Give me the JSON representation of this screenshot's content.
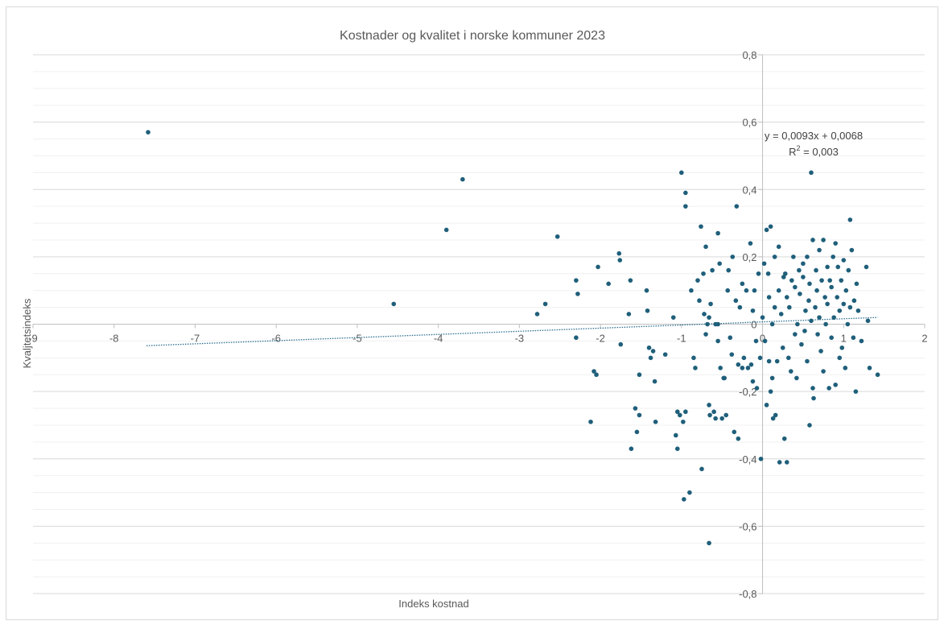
{
  "chart_data": {
    "type": "scatter",
    "title": "Kostnader og kvalitet i norske kommuner 2023",
    "xlabel": "Indeks kostnad",
    "ylabel": "Kvaljtetsindeks",
    "xlim": [
      -9,
      2
    ],
    "ylim": [
      -0.8,
      0.8
    ],
    "x_ticks": [
      -9,
      -8,
      -7,
      -6,
      -5,
      -4,
      -3,
      -2,
      -1,
      0,
      1,
      2
    ],
    "x_tick_labels": [
      "-9",
      "-8",
      "-7",
      "-6",
      "-5",
      "-4",
      "-3",
      "-2",
      "-1",
      "0",
      "1",
      "2"
    ],
    "y_ticks": [
      -0.8,
      -0.6,
      -0.4,
      -0.2,
      0,
      0.2,
      0.4,
      0.6,
      0.8
    ],
    "y_tick_labels": [
      "-0,8",
      "-0,6",
      "-0,4",
      "-0,2",
      "0",
      "0,2",
      "0,4",
      "0,6",
      "0,8"
    ],
    "minor_gridlines": true,
    "marker_color": "#1f5f7a",
    "trendline": {
      "type": "linear",
      "slope": 0.0093,
      "intercept": 0.0068,
      "x_range": [
        -7.6,
        1.42
      ],
      "color": "#2e6f8e",
      "equation": "y = 0,0093x + 0,0068",
      "r2_prefix": "R",
      "r2_suffix": " = 0,003"
    },
    "series": [
      {
        "points": [
          [
            -7.58,
            0.57
          ],
          [
            -4.55,
            0.06
          ],
          [
            -3.9,
            0.28
          ],
          [
            -3.7,
            0.43
          ],
          [
            -2.78,
            0.03
          ],
          [
            -2.68,
            0.06
          ],
          [
            -2.53,
            0.26
          ],
          [
            -2.3,
            0.13
          ],
          [
            -2.28,
            0.09
          ],
          [
            -2.3,
            -0.04
          ],
          [
            -2.12,
            -0.29
          ],
          [
            -2.08,
            -0.14
          ],
          [
            -2.05,
            -0.15
          ],
          [
            -2.03,
            0.17
          ],
          [
            -1.9,
            0.12
          ],
          [
            -1.77,
            0.21
          ],
          [
            -1.76,
            0.19
          ],
          [
            -1.75,
            -0.06
          ],
          [
            -1.63,
            0.13
          ],
          [
            -1.65,
            0.03
          ],
          [
            -1.62,
            -0.37
          ],
          [
            -1.57,
            -0.25
          ],
          [
            -1.55,
            -0.32
          ],
          [
            -1.52,
            -0.27
          ],
          [
            -1.52,
            -0.15
          ],
          [
            -1.43,
            0.1
          ],
          [
            -1.42,
            0.04
          ],
          [
            -1.4,
            -0.07
          ],
          [
            -1.38,
            -0.1
          ],
          [
            -1.35,
            -0.08
          ],
          [
            -1.33,
            -0.17
          ],
          [
            -1.32,
            -0.29
          ],
          [
            -1.2,
            -0.09
          ],
          [
            -1.1,
            0.02
          ],
          [
            -1.07,
            -0.33
          ],
          [
            -1.05,
            -0.37
          ],
          [
            -1.05,
            -0.26
          ],
          [
            -1.02,
            -0.27
          ],
          [
            -1.0,
            0.45
          ],
          [
            -0.98,
            -0.29
          ],
          [
            -0.97,
            -0.52
          ],
          [
            -0.95,
            0.39
          ],
          [
            -0.95,
            0.35
          ],
          [
            -0.95,
            -0.26
          ],
          [
            -0.9,
            -0.5
          ],
          [
            -0.88,
            0.1
          ],
          [
            -0.85,
            -0.1
          ],
          [
            -0.83,
            -0.13
          ],
          [
            -0.8,
            0.13
          ],
          [
            -0.78,
            0.07
          ],
          [
            -0.76,
            0.29
          ],
          [
            -0.73,
            0.15
          ],
          [
            -0.72,
            0.03
          ],
          [
            -0.7,
            -0.03
          ],
          [
            -0.68,
            0.0
          ],
          [
            -0.66,
            -0.24
          ],
          [
            -0.66,
            0.02
          ],
          [
            -0.65,
            -0.27
          ],
          [
            -0.64,
            0.06
          ],
          [
            -0.62,
            0.16
          ],
          [
            -0.6,
            -0.26
          ],
          [
            -0.58,
            -0.28
          ],
          [
            -0.55,
            0.0
          ],
          [
            -0.55,
            0.27
          ],
          [
            -0.53,
            0.18
          ],
          [
            -0.52,
            -0.13
          ],
          [
            -0.5,
            -0.28
          ],
          [
            -0.48,
            -0.16
          ],
          [
            -0.47,
            -0.16
          ],
          [
            -0.45,
            -0.27
          ],
          [
            -0.43,
            0.1
          ],
          [
            -0.42,
            0.16
          ],
          [
            -0.4,
            -0.04
          ],
          [
            -0.38,
            -0.09
          ],
          [
            -0.37,
            0.2
          ],
          [
            -0.35,
            -0.32
          ],
          [
            -0.33,
            0.07
          ],
          [
            -0.32,
            0.35
          ],
          [
            -0.3,
            -0.12
          ],
          [
            -0.3,
            -0.34
          ],
          [
            -0.28,
            0.05
          ],
          [
            -0.25,
            -0.13
          ],
          [
            -0.25,
            0.12
          ],
          [
            -0.23,
            -0.1
          ],
          [
            -0.66,
            -0.65
          ],
          [
            -0.75,
            -0.43
          ],
          [
            -0.7,
            0.23
          ],
          [
            -0.58,
            0.0
          ],
          [
            -0.55,
            -0.05
          ],
          [
            -0.2,
            0.1
          ],
          [
            -0.18,
            -0.13
          ],
          [
            -0.15,
            0.24
          ],
          [
            -0.14,
            -0.12
          ],
          [
            -0.12,
            -0.17
          ],
          [
            -0.12,
            0.04
          ],
          [
            -0.1,
            0.1
          ],
          [
            -0.08,
            -0.05
          ],
          [
            -0.07,
            -0.19
          ],
          [
            -0.05,
            0.15
          ],
          [
            -0.03,
            -0.1
          ],
          [
            -0.02,
            -0.4
          ],
          [
            0.0,
            0.02
          ],
          [
            0.02,
            0.18
          ],
          [
            0.03,
            -0.05
          ],
          [
            0.05,
            0.28
          ],
          [
            0.05,
            -0.24
          ],
          [
            0.07,
            0.15
          ],
          [
            0.08,
            -0.11
          ],
          [
            0.08,
            0.08
          ],
          [
            0.1,
            -0.2
          ],
          [
            0.1,
            0.29
          ],
          [
            0.12,
            0.0
          ],
          [
            0.12,
            -0.16
          ],
          [
            0.13,
            -0.28
          ],
          [
            0.15,
            0.05
          ],
          [
            0.15,
            0.2
          ],
          [
            0.16,
            -0.27
          ],
          [
            0.18,
            -0.11
          ],
          [
            0.2,
            0.23
          ],
          [
            0.2,
            0.1
          ],
          [
            0.21,
            -0.41
          ],
          [
            0.23,
            0.03
          ],
          [
            0.25,
            -0.07
          ],
          [
            0.26,
            0.14
          ],
          [
            0.27,
            -0.34
          ],
          [
            0.28,
            0.15
          ],
          [
            0.3,
            0.08
          ],
          [
            0.3,
            -0.41
          ],
          [
            0.32,
            -0.1
          ],
          [
            0.33,
            0.05
          ],
          [
            0.35,
            -0.14
          ],
          [
            0.36,
            0.13
          ],
          [
            0.38,
            0.2
          ],
          [
            0.4,
            -0.03
          ],
          [
            0.4,
            0.11
          ],
          [
            0.42,
            -0.16
          ],
          [
            0.43,
            0.0
          ],
          [
            0.45,
            0.16
          ],
          [
            0.46,
            0.09
          ],
          [
            0.48,
            -0.06
          ],
          [
            0.5,
            0.14
          ],
          [
            0.5,
            0.18
          ],
          [
            0.52,
            -0.02
          ],
          [
            0.53,
            0.04
          ],
          [
            0.55,
            0.2
          ],
          [
            0.55,
            -0.11
          ],
          [
            0.57,
            0.07
          ],
          [
            0.58,
            -0.3
          ],
          [
            0.58,
            0.12
          ],
          [
            0.6,
            0.45
          ],
          [
            0.6,
            0.01
          ],
          [
            0.62,
            0.25
          ],
          [
            0.62,
            -0.19
          ],
          [
            0.63,
            -0.22
          ],
          [
            0.65,
            0.05
          ],
          [
            0.66,
            0.16
          ],
          [
            0.67,
            0.1
          ],
          [
            0.68,
            -0.03
          ],
          [
            0.7,
            0.22
          ],
          [
            0.7,
            0.02
          ],
          [
            0.72,
            -0.08
          ],
          [
            0.73,
            0.13
          ],
          [
            0.75,
            0.25
          ],
          [
            0.75,
            -0.14
          ],
          [
            0.77,
            0.08
          ],
          [
            0.78,
            0.0
          ],
          [
            0.8,
            0.17
          ],
          [
            0.8,
            0.06
          ],
          [
            0.82,
            -0.19
          ],
          [
            0.83,
            0.13
          ],
          [
            0.85,
            0.11
          ],
          [
            0.85,
            -0.04
          ],
          [
            0.87,
            0.2
          ],
          [
            0.88,
            0.02
          ],
          [
            0.9,
            0.24
          ],
          [
            0.9,
            -0.18
          ],
          [
            0.92,
            0.08
          ],
          [
            0.93,
            0.17
          ],
          [
            0.95,
            -0.1
          ],
          [
            0.95,
            0.04
          ],
          [
            0.97,
            0.13
          ],
          [
            0.98,
            -0.07
          ],
          [
            1.0,
            0.19
          ],
          [
            1.0,
            0.06
          ],
          [
            1.02,
            -0.13
          ],
          [
            1.03,
            0.1
          ],
          [
            1.05,
            0.0
          ],
          [
            1.06,
            0.16
          ],
          [
            1.08,
            0.31
          ],
          [
            1.08,
            0.05
          ],
          [
            1.1,
            0.22
          ],
          [
            1.12,
            -0.04
          ],
          [
            1.13,
            0.07
          ],
          [
            1.15,
            -0.2
          ],
          [
            1.16,
            0.12
          ],
          [
            1.18,
            0.04
          ],
          [
            1.22,
            -0.05
          ],
          [
            1.28,
            0.17
          ],
          [
            1.3,
            0.01
          ],
          [
            1.32,
            -0.13
          ],
          [
            1.42,
            -0.15
          ]
        ]
      }
    ]
  }
}
